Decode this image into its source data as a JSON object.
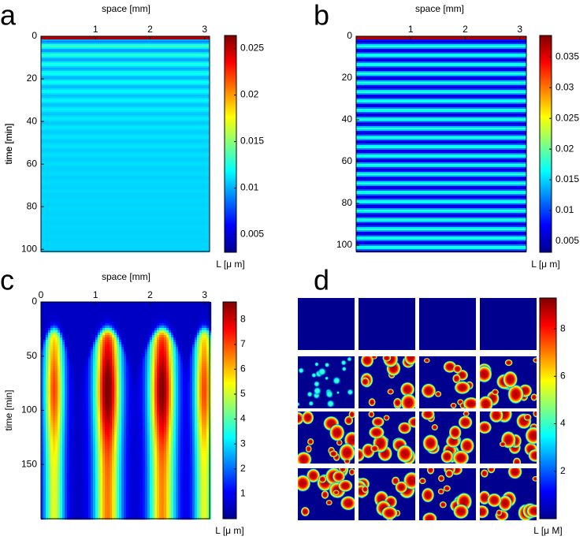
{
  "chart_data": [
    {
      "type": "heatmap",
      "label": "a",
      "xlabel": "space [mm]",
      "ylabel": "time [min]",
      "xlim": [
        0,
        3.09
      ],
      "xticks": [
        1,
        2,
        3
      ],
      "ylim": [
        0,
        101
      ],
      "yticks": [
        0,
        20,
        40,
        60,
        80,
        100
      ],
      "colorbar": {
        "clim": [
          0.0031,
          0.0264
        ],
        "ticks": [
          0.005,
          0.01,
          0.015,
          0.02,
          0.025
        ],
        "label": "L [μ m]"
      }
    },
    {
      "type": "heatmap",
      "label": "b",
      "xlabel": "space [mm]",
      "ylabel": "time [min]",
      "xlim": [
        0,
        3.12
      ],
      "xticks": [
        1,
        2,
        3
      ],
      "ylim": [
        0,
        103
      ],
      "yticks": [
        0,
        20,
        40,
        60,
        80,
        100
      ],
      "colorbar": {
        "clim": [
          0.0032,
          0.0385
        ],
        "ticks": [
          0.005,
          0.01,
          0.015,
          0.02,
          0.025,
          0.03,
          0.035
        ],
        "label": "L [μ m]"
      }
    },
    {
      "type": "heatmap",
      "label": "c",
      "xlabel": "space [mm]",
      "ylabel": "time [min]",
      "xlim": [
        0,
        3.09
      ],
      "xticks": [
        0,
        1,
        2,
        3
      ],
      "ylim": [
        0,
        200
      ],
      "yticks": [
        0,
        50,
        100,
        150
      ],
      "colorbar": {
        "clim": [
          0,
          8.7
        ],
        "ticks": [
          1,
          2,
          3,
          4,
          5,
          6,
          7,
          8
        ],
        "label": "L [μ m]"
      }
    },
    {
      "type": "tiles",
      "label": "d",
      "colorbar": {
        "clim": [
          0,
          9.3
        ],
        "ticks": [
          2,
          4,
          6,
          8
        ],
        "label": "L [μ M]"
      }
    }
  ]
}
